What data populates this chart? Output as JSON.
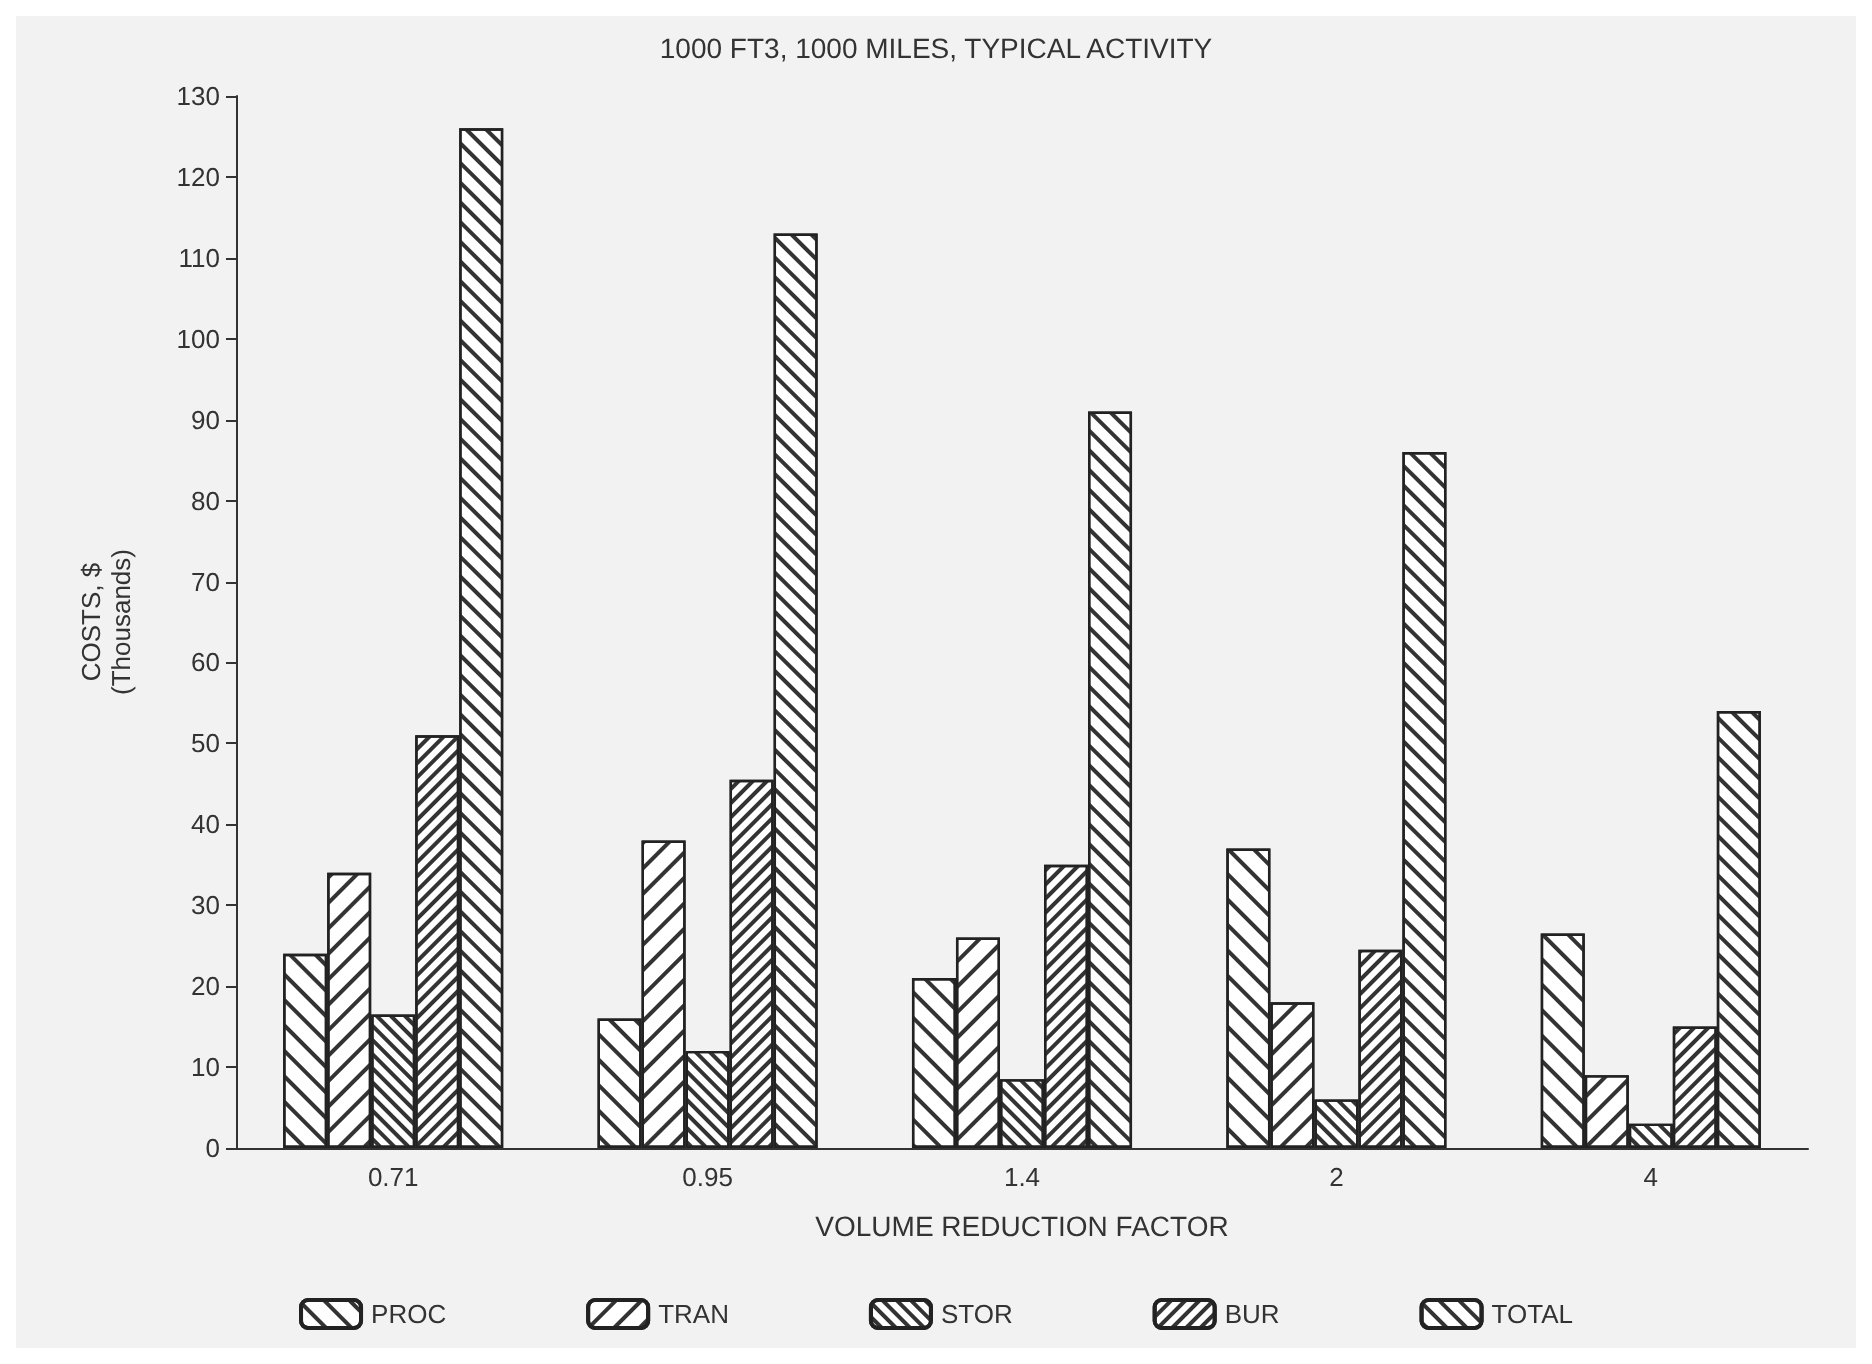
{
  "chart_data": {
    "type": "bar",
    "title": "1000 FT3, 1000 MILES, TYPICAL ACTIVITY",
    "xlabel": "VOLUME REDUCTION FACTOR",
    "ylabel": "COSTS, $\n(Thousands)",
    "categories": [
      "0.71",
      "0.95",
      "1.4",
      "2",
      "4"
    ],
    "series": [
      {
        "name": "PROC",
        "color": "#ffffff",
        "values": [
          24,
          16,
          21,
          37,
          26.5
        ]
      },
      {
        "name": "TRAN",
        "color": "#ffffff",
        "values": [
          34,
          38,
          26,
          18,
          9
        ]
      },
      {
        "name": "STOR",
        "color": "#ffffff",
        "values": [
          16.5,
          12,
          8.5,
          6,
          3
        ]
      },
      {
        "name": "BUR",
        "color": "#ffffff",
        "values": [
          51,
          45.5,
          35,
          24.5,
          15
        ]
      },
      {
        "name": "TOTAL",
        "color": "#ffffff",
        "values": [
          126,
          113,
          91,
          86,
          54
        ]
      }
    ],
    "ylim": [
      0,
      130
    ],
    "yticks": [
      0,
      10,
      20,
      30,
      40,
      50,
      60,
      70,
      80,
      90,
      100,
      110,
      120,
      130
    ],
    "grid": false,
    "legend": "bottom"
  }
}
